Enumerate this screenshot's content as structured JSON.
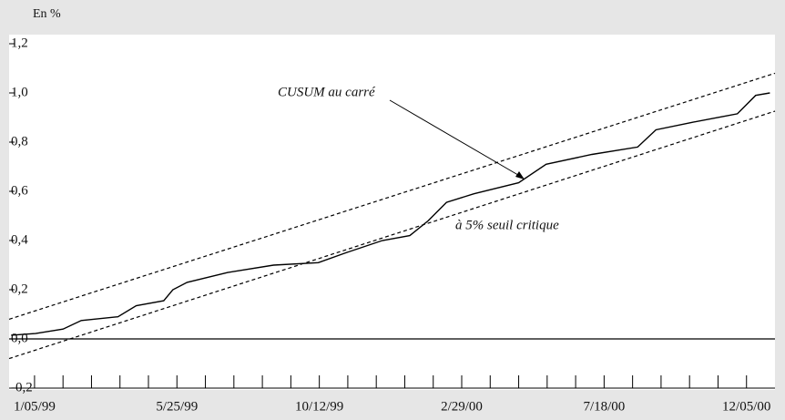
{
  "chart_data": {
    "type": "line",
    "y_axis_label": "En %",
    "annotations": [
      "CUSUM au carré",
      "à 5% seuil critique"
    ],
    "xlim": [
      "1998-12-11",
      "2001-01-02"
    ],
    "xticks": [
      {
        "value": "1999-01-05",
        "label": "1/05/99"
      },
      {
        "value": "1999-05-25",
        "label": "5/25/99"
      },
      {
        "value": "1999-10-12",
        "label": "10/12/99"
      },
      {
        "value": "2000-02-29",
        "label": "2/29/00"
      },
      {
        "value": "2000-07-18",
        "label": "7/18/00"
      },
      {
        "value": "2000-12-05",
        "label": "12/05/00"
      }
    ],
    "ylim": [
      -0.2,
      1.2
    ],
    "yticks": [
      {
        "value": -0.2,
        "label": "-0,2"
      },
      {
        "value": 0,
        "label": "0,0"
      },
      {
        "value": 0.2,
        "label": "0,2"
      },
      {
        "value": 0.4,
        "label": "0,4"
      },
      {
        "value": 0.6,
        "label": "0,6"
      },
      {
        "value": 0.8,
        "label": "0,8"
      },
      {
        "value": 1,
        "label": "1,0"
      },
      {
        "value": 1.2,
        "label": "1,2"
      }
    ],
    "series": [
      {
        "name": "CUSUM au carré",
        "color": "#000000",
        "dash": false,
        "x": [
          "1998-12-13",
          "1999-01-06",
          "1999-02-02",
          "1999-02-20",
          "1999-03-28",
          "1999-04-15",
          "1999-05-12",
          "1999-05-21",
          "1999-06-04",
          "1999-07-14",
          "1999-08-28",
          "1999-10-11",
          "1999-11-07",
          "1999-12-13",
          "2000-01-09",
          "2000-01-27",
          "2000-02-14",
          "2000-03-12",
          "2000-04-25",
          "2000-05-22",
          "2000-07-06",
          "2000-08-20",
          "2000-09-07",
          "2000-10-12",
          "2000-11-26",
          "2000-12-14",
          "2000-12-28"
        ],
        "values": [
          0.015,
          0.022,
          0.04,
          0.075,
          0.09,
          0.135,
          0.155,
          0.2,
          0.23,
          0.27,
          0.3,
          0.31,
          0.35,
          0.4,
          0.42,
          0.48,
          0.555,
          0.59,
          0.635,
          0.71,
          0.75,
          0.78,
          0.85,
          0.88,
          0.915,
          0.99,
          1.0
        ]
      },
      {
        "name": "à 5% seuil critique",
        "color": "#000000",
        "dash": true,
        "x": [
          "1998-12-11",
          "2001-01-02"
        ],
        "values": [
          0.08,
          1.08
        ]
      },
      {
        "name": "à 5% seuil critique",
        "color": "#000000",
        "dash": true,
        "x": [
          "1998-12-11",
          "2001-01-02"
        ],
        "values": [
          -0.08,
          0.926
        ]
      }
    ]
  }
}
